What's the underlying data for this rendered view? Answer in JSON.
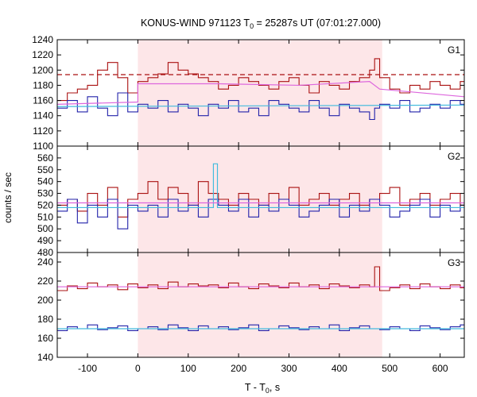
{
  "chart_data": {
    "type": "line",
    "title_main": "KONUS-WIND 971123 T",
    "title_sub": "0",
    "title_rest": " = 25287s UT (07:01:27.000)",
    "xlabel_main": "T - T",
    "xlabel_sub": "0",
    "xlabel_rest": ", s",
    "ylabel": "counts / sec",
    "xlim": [
      -160,
      648
    ],
    "xticks": [
      -100,
      0,
      100,
      200,
      300,
      400,
      500,
      600
    ],
    "highlight": [
      0,
      485
    ],
    "panels": [
      {
        "name": "G1",
        "ylim": [
          1100,
          1240
        ],
        "yticks": [
          1100,
          1120,
          1140,
          1160,
          1180,
          1200,
          1220,
          1240
        ],
        "series": [
          {
            "color": "#aa1111",
            "kind": "data",
            "x": [
              -160,
              -140,
              -120,
              -100,
              -80,
              -60,
              -40,
              -20,
              0,
              20,
              40,
              60,
              80,
              100,
              120,
              140,
              160,
              180,
              200,
              220,
              240,
              260,
              280,
              300,
              320,
              340,
              360,
              380,
              400,
              420,
              440,
              460,
              470,
              480,
              500,
              520,
              540,
              560,
              580,
              600,
              620,
              640
            ],
            "y": [
              1160,
              1170,
              1175,
              1180,
              1200,
              1210,
              1190,
              1170,
              1185,
              1190,
              1195,
              1210,
              1200,
              1195,
              1190,
              1185,
              1175,
              1180,
              1190,
              1185,
              1180,
              1175,
              1185,
              1190,
              1180,
              1170,
              1185,
              1180,
              1175,
              1185,
              1190,
              1200,
              1215,
              1190,
              1175,
              1170,
              1180,
              1175,
              1185,
              1180,
              1175,
              1185
            ]
          },
          {
            "color": "#2222aa",
            "kind": "data",
            "x": [
              -160,
              -140,
              -120,
              -100,
              -80,
              -60,
              -40,
              -20,
              0,
              20,
              40,
              60,
              80,
              100,
              120,
              140,
              160,
              180,
              200,
              220,
              240,
              260,
              280,
              300,
              320,
              340,
              360,
              380,
              400,
              420,
              440,
              460,
              470,
              480,
              500,
              520,
              540,
              560,
              580,
              600,
              620,
              640
            ],
            "y": [
              1150,
              1160,
              1145,
              1165,
              1150,
              1140,
              1170,
              1145,
              1155,
              1150,
              1160,
              1145,
              1155,
              1150,
              1140,
              1155,
              1150,
              1160,
              1145,
              1150,
              1140,
              1160,
              1155,
              1150,
              1145,
              1160,
              1150,
              1140,
              1155,
              1150,
              1145,
              1135,
              1150,
              1155,
              1150,
              1160,
              1145,
              1150,
              1155,
              1150,
              1160,
              1155
            ]
          },
          {
            "color": "#dd66dd",
            "kind": "fit",
            "x": [
              -160,
              0,
              0,
              160,
              320,
              460,
              480,
              648
            ],
            "y": [
              1155,
              1158,
              1182,
              1182,
              1180,
              1185,
              1175,
              1165
            ]
          },
          {
            "color": "#44bbdd",
            "kind": "fit",
            "x": [
              -160,
              648
            ],
            "y": [
              1152,
              1154
            ]
          },
          {
            "color": "#aa1111",
            "kind": "bg",
            "x": [
              -160,
              648
            ],
            "y": [
              1194,
              1194
            ]
          }
        ]
      },
      {
        "name": "G2",
        "ylim": [
          480,
          570
        ],
        "yticks": [
          480,
          490,
          500,
          510,
          520,
          530,
          540,
          550,
          560
        ],
        "series": [
          {
            "color": "#aa1111",
            "kind": "data",
            "x": [
              -160,
              -140,
              -120,
              -100,
              -80,
              -60,
              -40,
              -20,
              0,
              20,
              40,
              60,
              80,
              100,
              120,
              140,
              160,
              180,
              200,
              220,
              240,
              260,
              280,
              300,
              320,
              340,
              360,
              380,
              400,
              420,
              440,
              460,
              480,
              500,
              520,
              540,
              560,
              580,
              600,
              620,
              640
            ],
            "y": [
              520,
              525,
              515,
              530,
              520,
              535,
              510,
              525,
              530,
              540,
              525,
              535,
              530,
              520,
              540,
              530,
              525,
              520,
              530,
              525,
              520,
              530,
              525,
              535,
              520,
              525,
              530,
              520,
              525,
              530,
              520,
              525,
              530,
              535,
              520,
              525,
              530,
              520,
              525,
              530,
              520
            ]
          },
          {
            "color": "#2222aa",
            "kind": "data",
            "x": [
              -160,
              -140,
              -120,
              -100,
              -80,
              -60,
              -40,
              -20,
              0,
              20,
              40,
              60,
              80,
              100,
              120,
              140,
              160,
              180,
              200,
              220,
              240,
              260,
              280,
              300,
              320,
              340,
              360,
              380,
              400,
              420,
              440,
              460,
              480,
              500,
              520,
              540,
              560,
              580,
              600,
              620,
              640
            ],
            "y": [
              515,
              525,
              505,
              520,
              510,
              525,
              500,
              520,
              515,
              520,
              510,
              525,
              515,
              520,
              510,
              525,
              520,
              515,
              525,
              510,
              520,
              515,
              525,
              520,
              510,
              515,
              520,
              525,
              510,
              520,
              515,
              525,
              520,
              510,
              515,
              520,
              525,
              510,
              520,
              515,
              520
            ]
          },
          {
            "color": "#44bbdd",
            "kind": "fit",
            "x": [
              -160,
              150,
              150,
              158,
              158,
              166,
              166,
              648
            ],
            "y": [
              518,
              518,
              555,
              555,
              518,
              518,
              518,
              518
            ]
          },
          {
            "color": "#dd66dd",
            "kind": "fit",
            "x": [
              -160,
              648
            ],
            "y": [
              522,
              522
            ]
          }
        ]
      },
      {
        "name": "G3",
        "ylim": [
          140,
          250
        ],
        "yticks": [
          140,
          160,
          180,
          200,
          220,
          240
        ],
        "series": [
          {
            "color": "#aa1111",
            "kind": "data",
            "x": [
              -160,
              -140,
              -120,
              -100,
              -80,
              -60,
              -40,
              -20,
              0,
              20,
              40,
              60,
              80,
              100,
              120,
              140,
              160,
              180,
              200,
              220,
              240,
              260,
              280,
              300,
              320,
              340,
              360,
              380,
              400,
              420,
              440,
              460,
              470,
              480,
              500,
              520,
              540,
              560,
              580,
              600,
              620,
              640
            ],
            "y": [
              210,
              215,
              212,
              218,
              214,
              216,
              211,
              217,
              213,
              216,
              212,
              219,
              214,
              217,
              215,
              216,
              213,
              218,
              214,
              212,
              217,
              215,
              213,
              218,
              214,
              216,
              212,
              217,
              215,
              213,
              216,
              214,
              235,
              210,
              213,
              216,
              212,
              217,
              214,
              212,
              216,
              213
            ]
          },
          {
            "color": "#2222aa",
            "kind": "data",
            "x": [
              -160,
              -140,
              -120,
              -100,
              -80,
              -60,
              -40,
              -20,
              0,
              20,
              40,
              60,
              80,
              100,
              120,
              140,
              160,
              180,
              200,
              220,
              240,
              260,
              280,
              300,
              320,
              340,
              360,
              380,
              400,
              420,
              440,
              460,
              480,
              500,
              520,
              540,
              560,
              580,
              600,
              620,
              640
            ],
            "y": [
              168,
              172,
              170,
              174,
              169,
              171,
              173,
              168,
              170,
              172,
              169,
              174,
              171,
              168,
              173,
              170,
              172,
              169,
              171,
              174,
              168,
              170,
              173,
              171,
              169,
              172,
              170,
              174,
              168,
              171,
              173,
              170,
              169,
              172,
              170,
              168,
              173,
              171,
              169,
              172,
              174
            ]
          },
          {
            "color": "#dd66dd",
            "kind": "fit",
            "x": [
              -160,
              648
            ],
            "y": [
              214,
              214
            ]
          },
          {
            "color": "#44bbdd",
            "kind": "fit",
            "x": [
              -160,
              648
            ],
            "y": [
              170,
              170
            ]
          }
        ]
      }
    ]
  }
}
